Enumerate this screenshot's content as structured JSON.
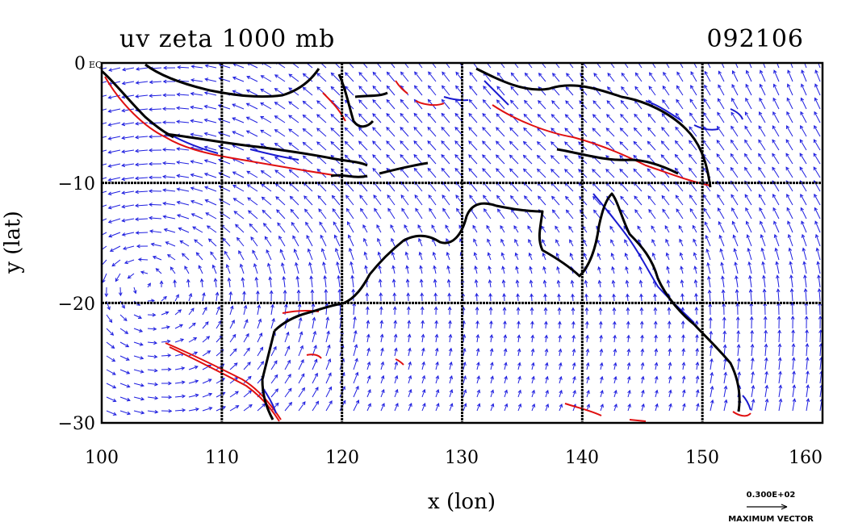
{
  "title_left": "uv zeta 1000 mb",
  "title_right": "092106",
  "axes": {
    "xlabel": "x (lon)",
    "ylabel": "y (lat)",
    "x_ticks": [
      "100",
      "110",
      "120",
      "130",
      "140",
      "150",
      "160"
    ],
    "y_ticks": [
      "0",
      "−10",
      "−20",
      "−30"
    ],
    "y_top_suffix": "EQ",
    "xlim": [
      100,
      160
    ],
    "ylim": [
      -30,
      0
    ]
  },
  "vector_key": {
    "value": "0.300E+02",
    "label": "MAXIMUM VECTOR"
  },
  "colors": {
    "vectors": "#1f1fe0",
    "positive_vorticity": "#e01010",
    "negative_vorticity": "#1a1ad0",
    "coastline": "#000000",
    "grid": "#000000"
  }
}
